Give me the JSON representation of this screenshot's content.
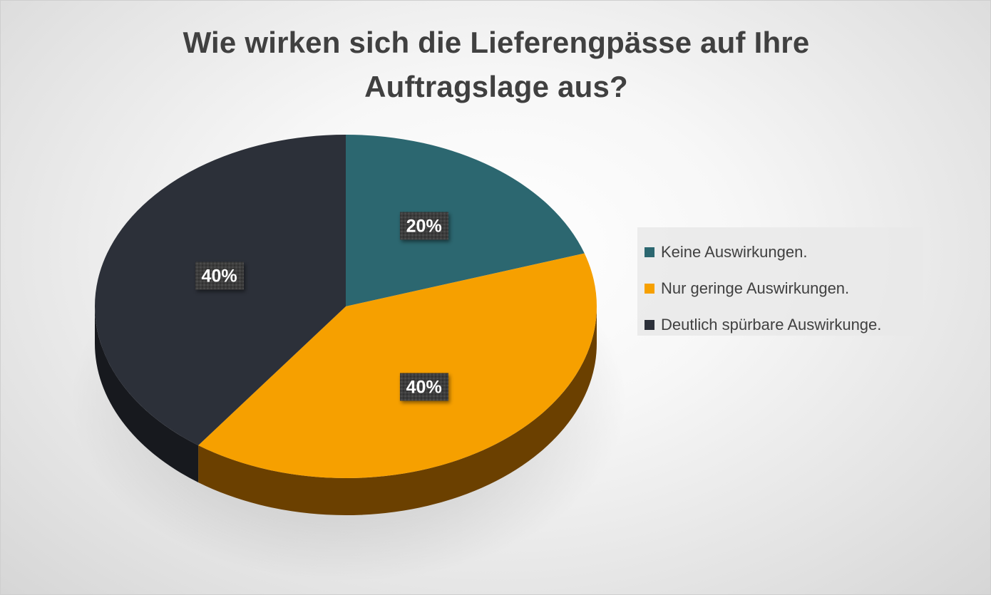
{
  "chart_data": {
    "type": "pie",
    "title_lines": [
      "Wie wirken sich die Lieferengpässe auf Ihre",
      "Auftragslage aus?"
    ],
    "categories": [
      "Keine Auswirkungen.",
      "Nur geringe Auswirkungen.",
      "Deutlich spürbare Auswirkunge."
    ],
    "values": [
      20,
      40,
      40
    ],
    "data_labels": [
      "20%",
      "40%",
      "40%"
    ],
    "colors": [
      "#2c6770",
      "#f6a000",
      "#2c3039"
    ],
    "side_colors": [
      "#1a3f45",
      "#6b4000",
      "#17191e"
    ],
    "style": "3d",
    "start_angle_deg": 0,
    "direction": "clockwise",
    "legend_position": "right"
  }
}
